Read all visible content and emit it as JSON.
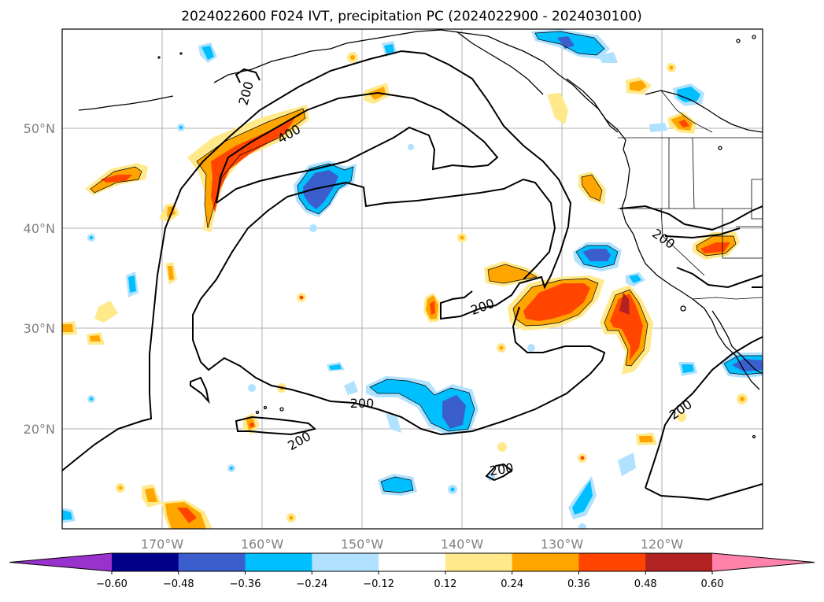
{
  "title": "2024022600 F024 IVT, precipitation PC (2024022900 - 2024030100)",
  "lat_labels": [
    "50°N",
    "40°N",
    "30°N",
    "20°N"
  ],
  "lon_labels": [
    "170°W",
    "160°W",
    "150°W",
    "140°W",
    "130°W",
    "120°W"
  ],
  "contour_labels": [
    "200",
    "400",
    "200",
    "200",
    "200",
    "200",
    "200",
    "200",
    "200"
  ],
  "colorbar": {
    "ticks": [
      "−0.60",
      "−0.48",
      "−0.36",
      "−0.24",
      "−0.12",
      "0.12",
      "0.24",
      "0.36",
      "0.48",
      "0.60"
    ],
    "colors": [
      "#9932cc",
      "#00008b",
      "#3a5fcd",
      "#00bfff",
      "#b0e2ff",
      "#ffffff",
      "#ffe98a",
      "#ffa500",
      "#ff4500",
      "#b22222",
      "#ff82ab"
    ]
  },
  "colors": {
    "ivt_contour": "#000000",
    "coast": "#000000",
    "grid": "#b0b0b0"
  }
}
